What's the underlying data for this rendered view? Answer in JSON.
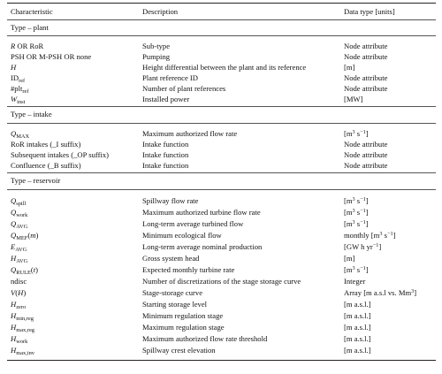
{
  "header": {
    "characteristic": "Characteristic",
    "description": "Description",
    "datatype": "Data type [units]"
  },
  "sections": {
    "plant": "Type – plant",
    "intake": "Type – intake",
    "reservoir": "Type – reservoir"
  },
  "plant_rows": [
    {
      "desc": "Sub-type",
      "type": "Node attribute"
    },
    {
      "char": "PSH OR M-PSH OR none",
      "desc": "Pumping",
      "type": "Node attribute"
    },
    {
      "desc": "Height differential between the plant and its reference",
      "type": "[m]"
    },
    {
      "desc": "Plant reference ID",
      "type": "Node attribute"
    },
    {
      "desc": "Number of plant references",
      "type": "Node attribute"
    },
    {
      "desc": "Installed power",
      "type": "[MW]"
    }
  ],
  "intake_rows": [
    {
      "desc": "Maximum authorized flow rate"
    },
    {
      "char": "RoR intakes (_I suffix)",
      "desc": "Intake function",
      "type": "Node attribute"
    },
    {
      "char": "Subsequent intakes (_OP suffix)",
      "desc": "Intake function",
      "type": "Node attribute"
    },
    {
      "char": "Confluence (_B suffix)",
      "desc": "Intake function",
      "type": "Node attribute"
    }
  ],
  "reservoir_rows": [
    {
      "desc": "Spillway flow rate"
    },
    {
      "desc": "Maximum authorized turbine flow rate"
    },
    {
      "desc": "Long-term average turbined flow"
    },
    {
      "desc": "Minimum ecological flow",
      "type": "monthly"
    },
    {
      "desc": "Long-term average nominal production"
    },
    {
      "desc": "Gross system head",
      "type": "[m]"
    },
    {
      "desc": "Expected monthly turbine rate"
    },
    {
      "char": "ndisc",
      "desc": "Number of discretizations of the stage storage curve",
      "type": "Integer"
    },
    {
      "desc": "Stage-storage curve",
      "type": "Array [m a.s.l vs. Mm"
    },
    {
      "desc": "Starting storage level",
      "type": "[m a.s.l.]"
    },
    {
      "desc": "Minimum regulation stage",
      "type": "[m a.s.l.]"
    },
    {
      "desc": "Maximum regulation stage",
      "type": "[m a.s.l.]"
    },
    {
      "desc": "Maximum authorized flow rate threshold",
      "type": "[m a.s.l.]"
    },
    {
      "desc": "Spillway crest elevation",
      "type": "[m a.s.l.]"
    }
  ]
}
